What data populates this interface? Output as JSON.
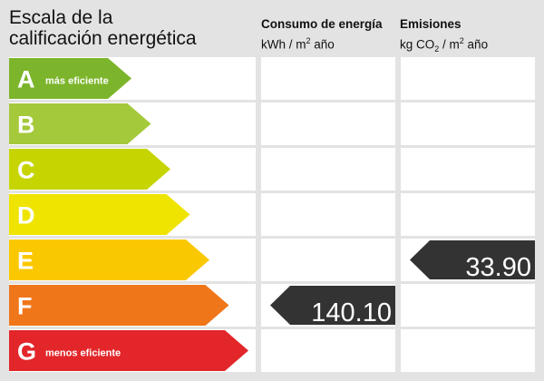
{
  "title_line1": "Escala de la",
  "title_line2": "calificación energética",
  "energy_header": {
    "line1": "Consumo de energía",
    "unit_a": "kWh / m",
    "unit_sup": "2",
    "unit_b": " año"
  },
  "emissions_header": {
    "line1": "Emisiones",
    "unit_a": "kg CO",
    "unit_sub": "2",
    "unit_b": " / m",
    "unit_sup": "2",
    "unit_c": " año"
  },
  "grades": [
    {
      "letter": "A",
      "label": "más eficiente",
      "color": "#7cb52b"
    },
    {
      "letter": "B",
      "label": "",
      "color": "#a4c93a"
    },
    {
      "letter": "C",
      "label": "",
      "color": "#c6d500"
    },
    {
      "letter": "D",
      "label": "",
      "color": "#efe300"
    },
    {
      "letter": "E",
      "label": "",
      "color": "#fac800"
    },
    {
      "letter": "F",
      "label": "",
      "color": "#f0761a"
    },
    {
      "letter": "G",
      "label": "menos eficiente",
      "color": "#e2262a"
    }
  ],
  "energy_rating": {
    "grade": "F",
    "value": "140.10"
  },
  "emissions_rating": {
    "grade": "E",
    "value": "33.90"
  },
  "indicator_color": "#333333"
}
